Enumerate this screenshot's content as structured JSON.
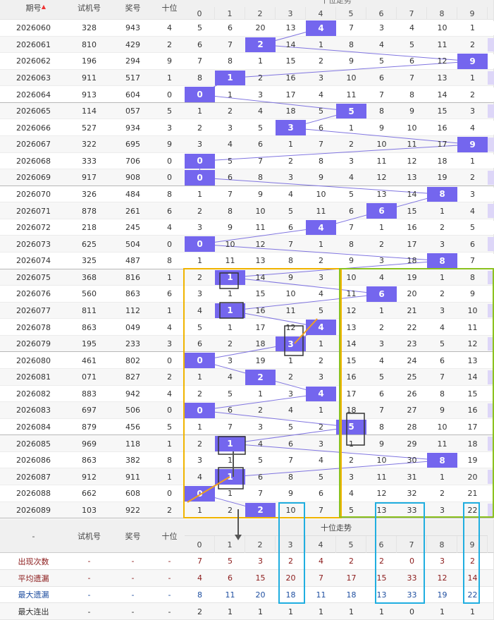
{
  "header": {
    "columns": [
      "期号",
      "试机号",
      "奖号",
      "十位"
    ],
    "trend_title": "十位走势",
    "digits": [
      "0",
      "1",
      "2",
      "3",
      "4",
      "5",
      "6",
      "7",
      "8",
      "9"
    ]
  },
  "rows": [
    {
      "issue": "2026060",
      "test": "328",
      "draw": "943",
      "ten": "4",
      "miss": [
        5,
        6,
        20,
        13,
        4,
        7,
        3,
        4,
        10,
        1
      ]
    },
    {
      "issue": "2026061",
      "test": "810",
      "draw": "429",
      "ten": "2",
      "miss": [
        6,
        7,
        2,
        14,
        1,
        8,
        4,
        5,
        11,
        2
      ]
    },
    {
      "issue": "2026062",
      "test": "196",
      "draw": "294",
      "ten": "9",
      "miss": [
        7,
        8,
        1,
        15,
        2,
        9,
        5,
        6,
        12,
        9
      ]
    },
    {
      "issue": "2026063",
      "test": "911",
      "draw": "517",
      "ten": "1",
      "miss": [
        8,
        1,
        2,
        16,
        3,
        10,
        6,
        7,
        13,
        1
      ]
    },
    {
      "issue": "2026064",
      "test": "913",
      "draw": "604",
      "ten": "0",
      "miss": [
        0,
        1,
        3,
        17,
        4,
        11,
        7,
        8,
        14,
        2
      ]
    },
    {
      "issue": "2026065",
      "test": "114",
      "draw": "057",
      "ten": "5",
      "miss": [
        1,
        2,
        4,
        18,
        5,
        5,
        8,
        9,
        15,
        3
      ]
    },
    {
      "issue": "2026066",
      "test": "527",
      "draw": "934",
      "ten": "3",
      "miss": [
        2,
        3,
        5,
        3,
        6,
        1,
        9,
        10,
        16,
        4
      ]
    },
    {
      "issue": "2026067",
      "test": "322",
      "draw": "695",
      "ten": "9",
      "miss": [
        3,
        4,
        6,
        1,
        7,
        2,
        10,
        11,
        17,
        9
      ]
    },
    {
      "issue": "2026068",
      "test": "333",
      "draw": "706",
      "ten": "0",
      "miss": [
        0,
        5,
        7,
        2,
        8,
        3,
        11,
        12,
        18,
        1
      ]
    },
    {
      "issue": "2026069",
      "test": "917",
      "draw": "908",
      "ten": "0",
      "miss": [
        0,
        6,
        8,
        3,
        9,
        4,
        12,
        13,
        19,
        2
      ]
    },
    {
      "issue": "2026070",
      "test": "326",
      "draw": "484",
      "ten": "8",
      "miss": [
        1,
        7,
        9,
        4,
        10,
        5,
        13,
        14,
        8,
        3
      ]
    },
    {
      "issue": "2026071",
      "test": "878",
      "draw": "261",
      "ten": "6",
      "miss": [
        2,
        8,
        10,
        5,
        11,
        6,
        6,
        15,
        1,
        4
      ]
    },
    {
      "issue": "2026072",
      "test": "218",
      "draw": "245",
      "ten": "4",
      "miss": [
        3,
        9,
        11,
        6,
        4,
        7,
        1,
        16,
        2,
        5
      ]
    },
    {
      "issue": "2026073",
      "test": "625",
      "draw": "504",
      "ten": "0",
      "miss": [
        0,
        10,
        12,
        7,
        1,
        8,
        2,
        17,
        3,
        6
      ]
    },
    {
      "issue": "2026074",
      "test": "325",
      "draw": "487",
      "ten": "8",
      "miss": [
        1,
        11,
        13,
        8,
        2,
        9,
        3,
        18,
        8,
        7
      ]
    },
    {
      "issue": "2026075",
      "test": "368",
      "draw": "816",
      "ten": "1",
      "miss": [
        2,
        1,
        14,
        9,
        3,
        10,
        4,
        19,
        1,
        8
      ]
    },
    {
      "issue": "2026076",
      "test": "560",
      "draw": "863",
      "ten": "6",
      "miss": [
        3,
        1,
        15,
        10,
        4,
        11,
        6,
        20,
        2,
        9
      ]
    },
    {
      "issue": "2026077",
      "test": "811",
      "draw": "112",
      "ten": "1",
      "miss": [
        4,
        1,
        16,
        11,
        5,
        12,
        1,
        21,
        3,
        10
      ]
    },
    {
      "issue": "2026078",
      "test": "863",
      "draw": "049",
      "ten": "4",
      "miss": [
        5,
        1,
        17,
        12,
        4,
        13,
        2,
        22,
        4,
        11
      ]
    },
    {
      "issue": "2026079",
      "test": "195",
      "draw": "233",
      "ten": "3",
      "miss": [
        6,
        2,
        18,
        3,
        1,
        14,
        3,
        23,
        5,
        12
      ]
    },
    {
      "issue": "2026080",
      "test": "461",
      "draw": "802",
      "ten": "0",
      "miss": [
        0,
        3,
        19,
        1,
        2,
        15,
        4,
        24,
        6,
        13
      ]
    },
    {
      "issue": "2026081",
      "test": "071",
      "draw": "827",
      "ten": "2",
      "miss": [
        1,
        4,
        2,
        2,
        3,
        16,
        5,
        25,
        7,
        14
      ]
    },
    {
      "issue": "2026082",
      "test": "883",
      "draw": "942",
      "ten": "4",
      "miss": [
        2,
        5,
        1,
        3,
        4,
        17,
        6,
        26,
        8,
        15
      ]
    },
    {
      "issue": "2026083",
      "test": "697",
      "draw": "506",
      "ten": "0",
      "miss": [
        0,
        6,
        2,
        4,
        1,
        18,
        7,
        27,
        9,
        16
      ]
    },
    {
      "issue": "2026084",
      "test": "879",
      "draw": "456",
      "ten": "5",
      "miss": [
        1,
        7,
        3,
        5,
        2,
        5,
        8,
        28,
        10,
        17
      ]
    },
    {
      "issue": "2026085",
      "test": "969",
      "draw": "118",
      "ten": "1",
      "miss": [
        2,
        1,
        4,
        6,
        3,
        1,
        9,
        29,
        11,
        18
      ]
    },
    {
      "issue": "2026086",
      "test": "863",
      "draw": "382",
      "ten": "8",
      "miss": [
        3,
        1,
        5,
        7,
        4,
        2,
        10,
        30,
        8,
        19
      ]
    },
    {
      "issue": "2026087",
      "test": "912",
      "draw": "911",
      "ten": "1",
      "miss": [
        4,
        1,
        6,
        8,
        5,
        3,
        11,
        31,
        1,
        20
      ]
    },
    {
      "issue": "2026088",
      "test": "662",
      "draw": "608",
      "ten": "0",
      "miss": [
        0,
        1,
        7,
        9,
        6,
        4,
        12,
        32,
        2,
        21
      ]
    },
    {
      "issue": "2026089",
      "test": "103",
      "draw": "922",
      "ten": "2",
      "miss": [
        1,
        2,
        2,
        10,
        7,
        5,
        13,
        33,
        3,
        22
      ]
    }
  ],
  "footer": {
    "columns": [
      "-",
      "试机号",
      "奖号",
      "十位"
    ],
    "trend_title": "十位走势",
    "digits": [
      "0",
      "1",
      "2",
      "3",
      "4",
      "5",
      "6",
      "7",
      "8",
      "9"
    ]
  },
  "stats": [
    {
      "label": "出现次数",
      "cells": [
        "-",
        "-",
        "-"
      ],
      "values": [
        7,
        5,
        3,
        2,
        4,
        2,
        2,
        0,
        3,
        2
      ]
    },
    {
      "label": "平均遗漏",
      "cells": [
        "-",
        "-",
        "-"
      ],
      "values": [
        4,
        6,
        15,
        20,
        7,
        17,
        15,
        33,
        12,
        14
      ]
    },
    {
      "label": "最大遗漏",
      "cells": [
        "-",
        "-",
        "-"
      ],
      "values": [
        8,
        11,
        20,
        18,
        11,
        18,
        13,
        33,
        19,
        22
      ]
    },
    {
      "label": "最大连出",
      "cells": [
        "-",
        "-",
        "-"
      ],
      "values": [
        2,
        1,
        1,
        1,
        1,
        1,
        1,
        0,
        1,
        1
      ]
    }
  ]
}
